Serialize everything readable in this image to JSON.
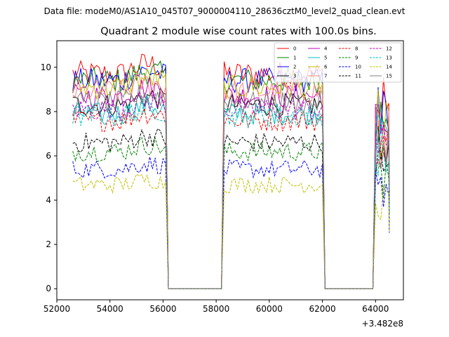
{
  "figure": {
    "suptitle": "Data file: modeM0/AS1A10_045T07_9000004110_28636cztM0_level2_quad_clean.evt",
    "title": "Quadrant 2 module wise count rates with 100.0s bins."
  },
  "chart_data": {
    "type": "line",
    "title": "Quadrant 2 module wise count rates with 100.0s bins.",
    "xlabel": "",
    "ylabel": "",
    "x_offset_label": "+3.482e8",
    "x_offset": 348200000,
    "xlim": [
      52000,
      65050
    ],
    "ylim": [
      -0.5,
      11.2
    ],
    "xticks": [
      52000,
      54000,
      56000,
      58000,
      60000,
      62000,
      64000
    ],
    "xtick_labels": [
      "52000",
      "54000",
      "56000",
      "58000",
      "60000",
      "62000",
      "64000"
    ],
    "yticks": [
      0,
      2,
      4,
      6,
      8,
      10
    ],
    "ytick_labels": [
      "0",
      "2",
      "4",
      "6",
      "8",
      "10"
    ],
    "grid": false,
    "legend_location": "upper right",
    "bin_seconds": 100,
    "segments": [
      [
        52600,
        56100
      ],
      [
        58300,
        62000
      ],
      [
        64000,
        64500
      ]
    ],
    "gaps": [
      [
        56200,
        58200
      ],
      [
        62100,
        63900
      ]
    ],
    "series": [
      {
        "name": "0",
        "color": "#ff0000",
        "dash": "solid",
        "level": 9.7
      },
      {
        "name": "1",
        "color": "#008000",
        "dash": "solid",
        "level": 9.4
      },
      {
        "name": "2",
        "color": "#0000ff",
        "dash": "solid",
        "level": 9.4
      },
      {
        "name": "3",
        "color": "#000000",
        "dash": "solid",
        "level": 8.3
      },
      {
        "name": "4",
        "color": "#bf00bf",
        "dash": "solid",
        "level": 8.7
      },
      {
        "name": "5",
        "color": "#00bfbf",
        "dash": "solid",
        "level": 7.9
      },
      {
        "name": "6",
        "color": "#bfbf00",
        "dash": "solid",
        "level": 9.1
      },
      {
        "name": "7",
        "color": "#ff7f7f",
        "dash": "solid",
        "level": 8.9
      },
      {
        "name": "8",
        "color": "#ff0000",
        "dash": "dashed",
        "level": 7.6
      },
      {
        "name": "9",
        "color": "#008000",
        "dash": "dashed",
        "level": 6.2
      },
      {
        "name": "10",
        "color": "#0000ff",
        "dash": "dashed",
        "level": 5.4
      },
      {
        "name": "11",
        "color": "#000000",
        "dash": "dashed",
        "level": 6.6
      },
      {
        "name": "12",
        "color": "#bf00bf",
        "dash": "dashed",
        "level": 8.1
      },
      {
        "name": "13",
        "color": "#00bfbf",
        "dash": "dashed",
        "level": 7.8
      },
      {
        "name": "14",
        "color": "#bfbf00",
        "dash": "dashed",
        "level": 4.7
      },
      {
        "name": "15",
        "color": "#808080",
        "dash": "solid",
        "level": 8.4
      }
    ]
  }
}
